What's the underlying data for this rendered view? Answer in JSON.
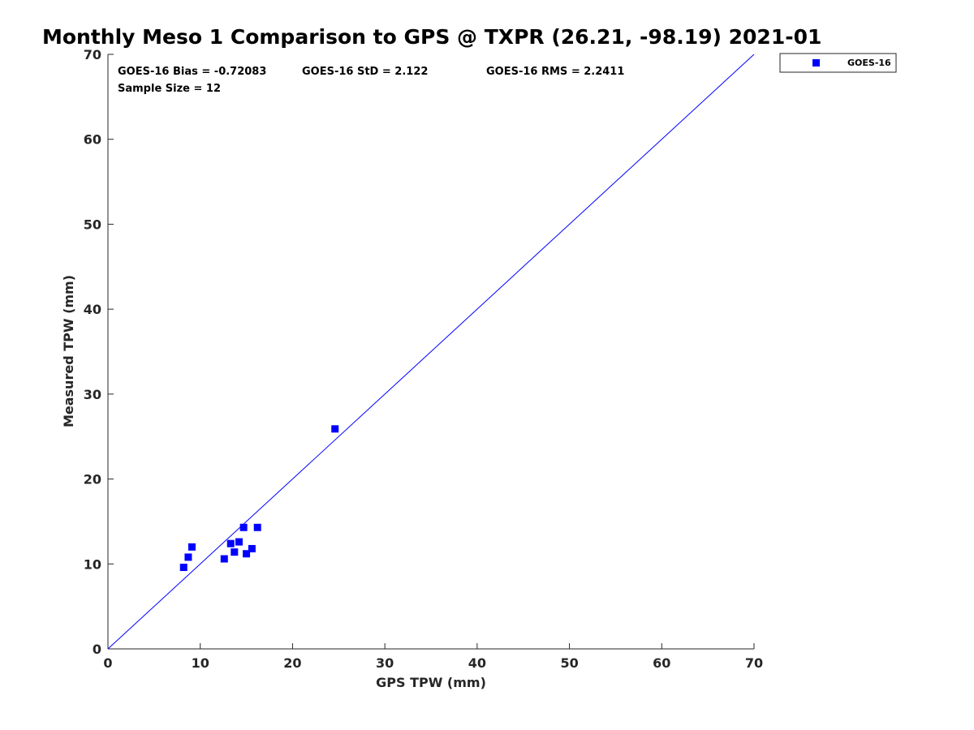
{
  "chart_data": {
    "type": "scatter",
    "title": "Monthly Meso 1 Comparison to GPS @ TXPR (26.21, -98.19) 2021-01",
    "xlabel": "GPS TPW (mm)",
    "ylabel": "Measured TPW (mm)",
    "xlim": [
      0,
      70
    ],
    "ylim": [
      0,
      70
    ],
    "xticks": [
      0,
      10,
      20,
      30,
      40,
      50,
      60,
      70
    ],
    "yticks": [
      0,
      10,
      20,
      30,
      40,
      50,
      60,
      70
    ],
    "grid": false,
    "legend": {
      "placement": "outside-top-right",
      "entries": [
        "GOES-16"
      ]
    },
    "reference_line": {
      "type": "one-to-one",
      "from": [
        0,
        0
      ],
      "to": [
        70,
        70
      ],
      "color": "#0000ff"
    },
    "annotations": {
      "bias": "GOES-16 Bias = -0.72083",
      "std": "GOES-16 StD = 2.122",
      "rms": "GOES-16 RMS = 2.2411",
      "sample_size": "Sample Size = 12"
    },
    "series": [
      {
        "name": "GOES-16",
        "color": "#0000ff",
        "marker": "square",
        "points": [
          [
            8.2,
            9.6
          ],
          [
            8.7,
            10.8
          ],
          [
            9.1,
            12.0
          ],
          [
            12.6,
            10.6
          ],
          [
            13.3,
            12.4
          ],
          [
            13.7,
            11.4
          ],
          [
            14.2,
            12.6
          ],
          [
            14.7,
            14.3
          ],
          [
            15.0,
            11.2
          ],
          [
            15.6,
            11.8
          ],
          [
            16.2,
            14.3
          ],
          [
            24.6,
            25.9
          ]
        ]
      }
    ]
  }
}
